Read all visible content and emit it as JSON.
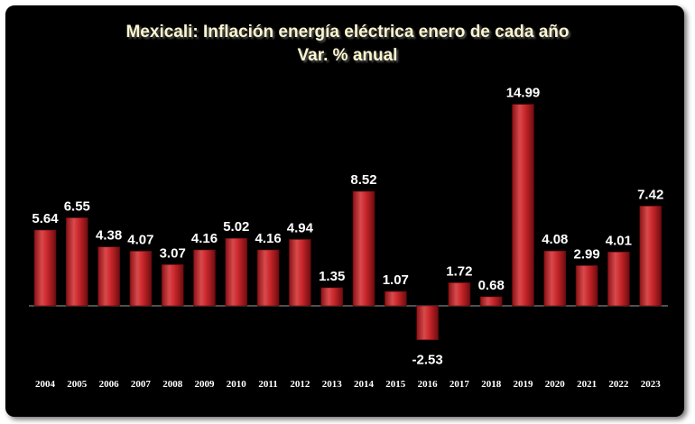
{
  "chart_data": {
    "type": "bar",
    "title": "Mexicali: Inflación energía eléctrica enero de cada año",
    "subtitle": "Var. % anual",
    "categories": [
      "2004",
      "2005",
      "2006",
      "2007",
      "2008",
      "2009",
      "2010",
      "2011",
      "2012",
      "2013",
      "2014",
      "2015",
      "2016",
      "2017",
      "2018",
      "2019",
      "2020",
      "2021",
      "2022",
      "2023"
    ],
    "values": [
      5.64,
      6.55,
      4.38,
      4.07,
      3.07,
      4.16,
      5.02,
      4.16,
      4.94,
      1.35,
      8.52,
      1.07,
      -2.53,
      1.72,
      0.68,
      14.99,
      4.08,
      2.99,
      4.01,
      7.42
    ],
    "value_labels": [
      "5.64",
      "6.55",
      "4.38",
      "4.07",
      "3.07",
      "4.16",
      "5.02",
      "4.16",
      "4.94",
      "1.35",
      "8.52",
      "1.07",
      "-2.53",
      "1.72",
      "0.68",
      "14.99",
      "4.08",
      "2.99",
      "4.01",
      "7.42"
    ],
    "xlabel": "",
    "ylabel": "",
    "ylim": [
      -2.53,
      14.99
    ],
    "legend": "none",
    "grid": false
  },
  "colors": {
    "background": "#000000",
    "bar_light": "#e05a5a",
    "bar_mid": "#c8262b",
    "bar_dark": "#7a0f12",
    "title": "#fbf5cf",
    "labels": "#ffffff",
    "axis": "#a0a0a0"
  }
}
